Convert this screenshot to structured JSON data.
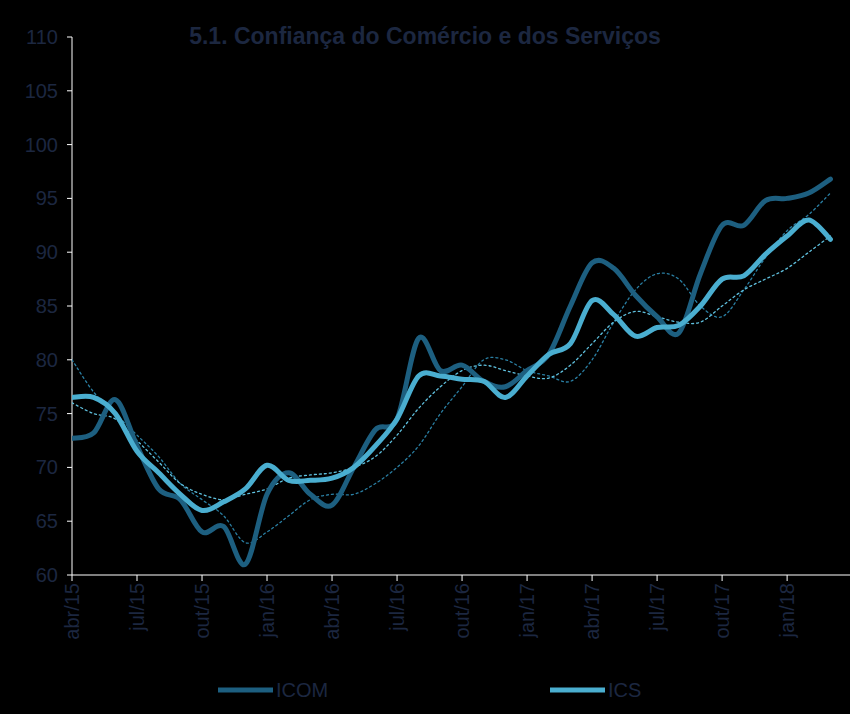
{
  "chart_data": {
    "type": "line",
    "title": "5.1. Confiança do Comércio e dos Serviços",
    "categories": [
      "abr/15",
      null,
      null,
      "jul/15",
      null,
      null,
      "out/15",
      null,
      null,
      "jan/16",
      null,
      null,
      "abr/16",
      null,
      null,
      "jul/16",
      null,
      null,
      "out/16",
      null,
      null,
      "jan/17",
      null,
      null,
      "abr/17",
      null,
      null,
      "jul/17",
      null,
      null,
      "out/17",
      null,
      null,
      "jan/18",
      null,
      null
    ],
    "series": [
      {
        "name": "ICOM",
        "color": "#1d5f80",
        "line_style": "solid",
        "values": [
          72.7,
          73.2,
          76.3,
          72,
          68,
          67,
          64,
          64.5,
          61,
          67.5,
          69.5,
          67.5,
          66.5,
          70,
          73.5,
          74.5,
          82,
          79,
          79.5,
          78,
          77.5,
          79,
          80.5,
          85,
          89,
          88.5,
          86,
          84,
          82.5,
          88,
          92.5,
          92.5,
          94.8,
          95,
          95.5,
          96.8
        ]
      },
      {
        "name": "ICS",
        "color": "#4aaed0",
        "line_style": "solid",
        "values": [
          76.5,
          76.5,
          75,
          71.5,
          69.5,
          67.5,
          66,
          66.8,
          68,
          70.2,
          68.8,
          68.8,
          69,
          70,
          72,
          74.5,
          78.5,
          78.5,
          78.2,
          78,
          76.5,
          78.5,
          80.5,
          81.5,
          85.5,
          84.2,
          82.2,
          83,
          83.2,
          85,
          87.5,
          87.8,
          89.8,
          91.5,
          93,
          91.2
        ]
      },
      {
        "color": "#2a7fa3",
        "line_style": "dotted",
        "values": [
          80,
          77,
          75,
          73,
          71,
          68.5,
          67,
          65.5,
          63,
          64,
          65.5,
          67,
          67.5,
          67.5,
          68.5,
          70,
          72,
          75,
          77.5,
          80,
          80,
          79,
          78.5,
          78,
          80,
          83.5,
          86.5,
          88,
          87.5,
          85,
          84,
          86.5,
          89.5,
          92,
          93.5,
          95.5
        ]
      },
      {
        "color": "#5fc0de",
        "line_style": "dotted",
        "values": [
          76,
          75,
          74.5,
          72.5,
          70.5,
          68.5,
          67.5,
          67,
          67.5,
          68,
          69,
          69.3,
          69.5,
          70,
          71,
          73,
          75.5,
          77.5,
          79,
          79.5,
          79,
          78.5,
          78.3,
          79.5,
          81.5,
          83.5,
          84.5,
          84,
          83.5,
          83.5,
          85,
          86.5,
          87.5,
          88.5,
          90,
          91.5
        ]
      }
    ],
    "ylim": [
      60,
      110
    ],
    "yticks": [
      60,
      65,
      70,
      75,
      80,
      85,
      90,
      95,
      100,
      105,
      110
    ],
    "grid": false,
    "legend": "bottom"
  }
}
